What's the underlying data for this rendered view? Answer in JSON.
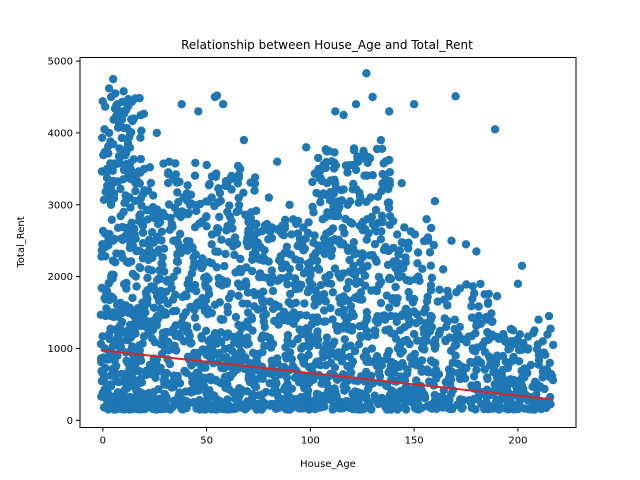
{
  "chart_data": {
    "type": "scatter",
    "title": "Relationship between House_Age and Total_Rent",
    "xlabel": "House_Age",
    "ylabel": "Total_Rent",
    "xlim": [
      -11,
      228
    ],
    "ylim": [
      -100,
      5050
    ],
    "xticks": [
      0,
      50,
      100,
      150,
      200
    ],
    "yticks": [
      0,
      1000,
      2000,
      3000,
      4000,
      5000
    ],
    "grid": false,
    "marker_color": "#1f77b4",
    "regression_color": "#d62728",
    "regression_line": {
      "x": [
        -1,
        217
      ],
      "y": [
        975,
        290
      ]
    },
    "series": [
      {
        "type": "scatter",
        "x": [
          0,
          1,
          1,
          2,
          2,
          2,
          3,
          3,
          3,
          3,
          4,
          4,
          4,
          4,
          5,
          5,
          5,
          5,
          6,
          6,
          6,
          7,
          7,
          8,
          8,
          9,
          9,
          10,
          10,
          11,
          12,
          12,
          13,
          14,
          15,
          16,
          18,
          20,
          22,
          24,
          26,
          28,
          30,
          32,
          34,
          36,
          38,
          40,
          42,
          44,
          46,
          48,
          50,
          52,
          54,
          55,
          56,
          58,
          60,
          62,
          64,
          66,
          68,
          70,
          72,
          74,
          76,
          78,
          80,
          82,
          84,
          86,
          88,
          90,
          92,
          94,
          96,
          98,
          100,
          102,
          104,
          106,
          108,
          110,
          112,
          114,
          116,
          118,
          120,
          122,
          124,
          126,
          127,
          128,
          130,
          132,
          134,
          136,
          138,
          140,
          142,
          144,
          146,
          148,
          150,
          152,
          154,
          156,
          158,
          160,
          162,
          164,
          166,
          168,
          170,
          172,
          175,
          178,
          180,
          184,
          186,
          189,
          190,
          193,
          196,
          200,
          202,
          205,
          208,
          210,
          212,
          214,
          215,
          216,
          217,
          2,
          6,
          10,
          14,
          20,
          30,
          40,
          50,
          60,
          70,
          90,
          100,
          110,
          120,
          130,
          140,
          150,
          160,
          170,
          180,
          190,
          200,
          210
        ],
        "y": [
          650,
          1000,
          2600,
          400,
          1800,
          3500,
          300,
          1200,
          4000,
          4620,
          500,
          2000,
          3000,
          4500,
          700,
          1500,
          2500,
          4750,
          600,
          2200,
          4550,
          900,
          4400,
          350,
          3600,
          1100,
          4300,
          2900,
          4580,
          1600,
          800,
          3800,
          2400,
          600,
          4200,
          1400,
          900,
          3200,
          2100,
          700,
          4000,
          1800,
          1200,
          3600,
          2500,
          600,
          4400,
          1500,
          3000,
          900,
          4300,
          1700,
          2700,
          600,
          4500,
          4520,
          1900,
          4400,
          1200,
          3400,
          900,
          2100,
          3900,
          1500,
          2500,
          700,
          2000,
          1300,
          3100,
          1800,
          3600,
          2200,
          900,
          3000,
          1500,
          2600,
          1200,
          3800,
          2100,
          1600,
          3500,
          2800,
          3300,
          1900,
          4300,
          1700,
          4250,
          3000,
          1300,
          4400,
          2200,
          3700,
          4830,
          2600,
          4500,
          1800,
          3900,
          1400,
          4300,
          2400,
          1700,
          3300,
          2200,
          1500,
          4400,
          2000,
          1000,
          2800,
          1400,
          3050,
          1200,
          2100,
          1600,
          2500,
          4510,
          1300,
          2450,
          800,
          2350,
          1100,
          1400,
          4050,
          900,
          1200,
          800,
          1900,
          2150,
          1000,
          1250,
          1400,
          1100,
          700,
          1450,
          600,
          1050,
          500,
          300,
          280,
          1200,
          3500,
          1500,
          400,
          2000,
          2900,
          1300,
          700,
          2200,
          800,
          1500,
          2300,
          1700,
          1200,
          1000,
          900,
          700,
          600,
          500,
          450
        ],
        "count_estimate": "thousands (dense cloud; representative sample)"
      }
    ]
  }
}
